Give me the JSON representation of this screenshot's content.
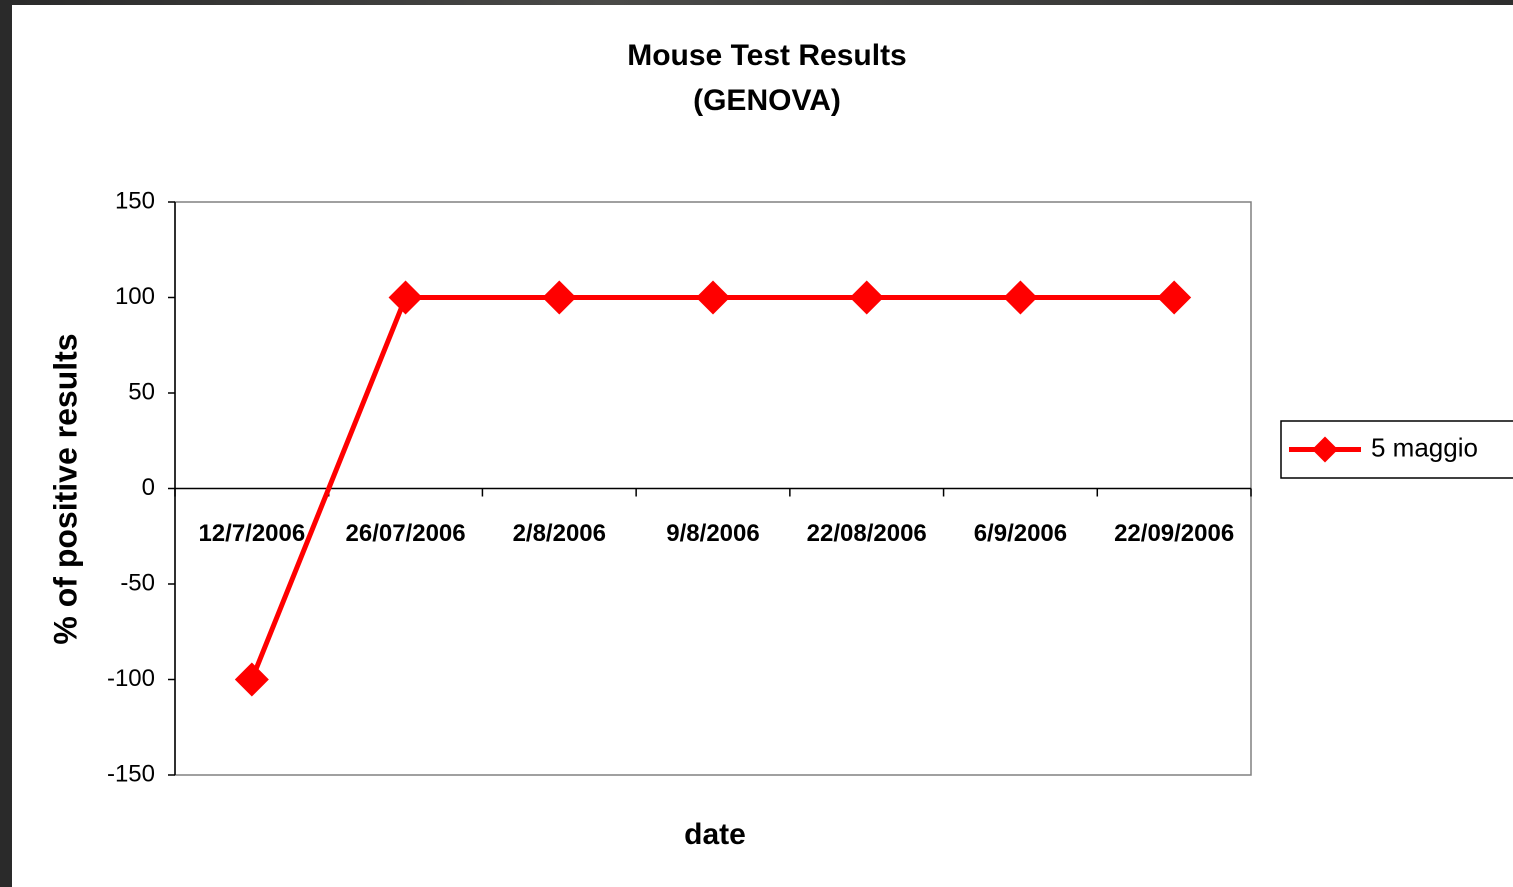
{
  "chart_data": {
    "type": "line",
    "title": "Mouse Test Results",
    "subtitle": "(GENOVA)",
    "x_label": "date",
    "y_label": "% of positive results",
    "categories": [
      "12/7/2006",
      "26/07/2006",
      "2/8/2006",
      "9/8/2006",
      "22/08/2006",
      "6/9/2006",
      "22/09/2006"
    ],
    "series": [
      {
        "name": "5 maggio",
        "color": "#ff0000",
        "values": [
          -100,
          100,
          100,
          100,
          100,
          100,
          100
        ]
      }
    ],
    "ylim": [
      -150,
      150
    ],
    "yticks": [
      -150,
      -100,
      -50,
      0,
      50,
      100,
      150
    ],
    "grid": false,
    "legend": "right"
  }
}
